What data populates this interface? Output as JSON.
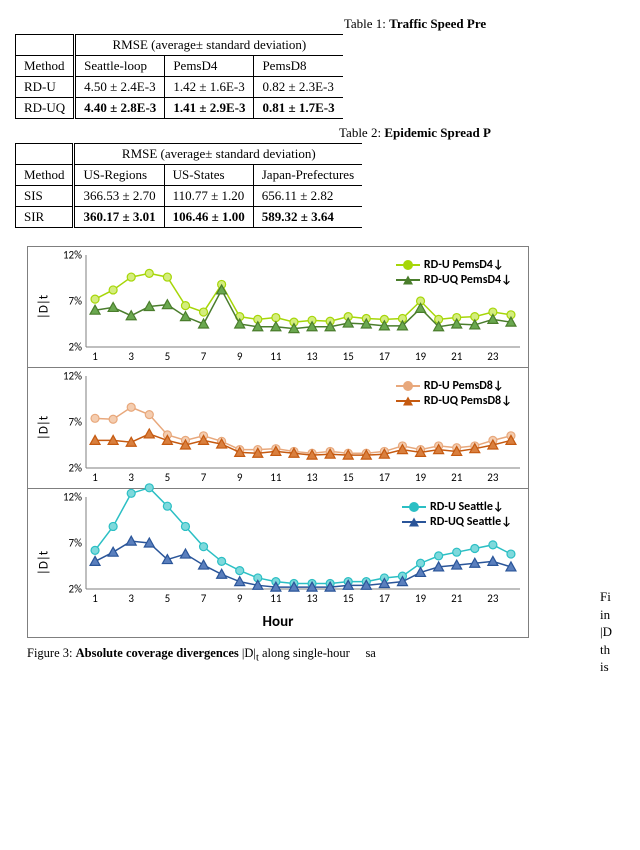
{
  "table1": {
    "caption_prefix": "Table 1: ",
    "caption_bold": "Traffic Speed Pre",
    "header_metric": "RMSE (average± standard deviation)",
    "method_header": "Method",
    "columns": [
      "Seattle-loop",
      "PemsD4",
      "PemsD8"
    ],
    "rows": [
      {
        "method": "RD-U",
        "vals": [
          "4.50 ± 2.4E-3",
          "1.42 ± 1.6E-3",
          "0.82 ± 2.3E-3"
        ],
        "bold": false
      },
      {
        "method": "RD-UQ",
        "vals": [
          "4.40 ± 2.8E-3",
          "1.41 ± 2.9E-3",
          "0.81 ± 1.7E-3"
        ],
        "bold": true
      }
    ]
  },
  "table2": {
    "caption_prefix": "Table 2: ",
    "caption_bold": "Epidemic Spread P",
    "header_metric": "RMSE (average± standard deviation)",
    "method_header": "Method",
    "columns": [
      "US-Regions",
      "US-States",
      "Japan-Prefectures"
    ],
    "rows": [
      {
        "method": "SIS",
        "vals": [
          "366.53 ± 2.70",
          "110.77 ± 1.20",
          "656.11 ± 2.82"
        ],
        "bold": false
      },
      {
        "method": "SIR",
        "vals": [
          "360.17 ± 3.01",
          "106.46 ± 1.00",
          "589.32 ± 3.64"
        ],
        "bold": true
      }
    ]
  },
  "charts": {
    "x_categories": [
      1,
      2,
      3,
      4,
      5,
      6,
      7,
      8,
      9,
      10,
      11,
      12,
      13,
      14,
      15,
      16,
      17,
      18,
      19,
      20,
      21,
      22,
      23,
      24
    ],
    "x_ticks_shown": [
      1,
      3,
      5,
      7,
      9,
      11,
      13,
      15,
      17,
      19,
      21,
      23
    ],
    "ytick_labels": [
      "2%",
      "7%",
      "12%"
    ],
    "ytick_values": [
      2,
      7,
      12
    ],
    "ylimits": [
      2,
      12
    ],
    "xaxis_title": "Hour",
    "ylabel": "|D|t",
    "panels": [
      {
        "legend": [
          {
            "label": "RD-U PemsD4↓",
            "color": "#a6d608",
            "marker": "circle"
          },
          {
            "label": "RD-UQ PemsD4↓",
            "color": "#4a7d2c",
            "marker": "triangle"
          }
        ],
        "series": [
          {
            "color": "#a6d608",
            "marker": "circle",
            "fill": "#d4ed7e",
            "y": [
              7.2,
              8.2,
              9.6,
              10.0,
              9.6,
              6.5,
              5.8,
              8.8,
              5.3,
              5.0,
              5.2,
              4.7,
              4.9,
              4.8,
              5.3,
              5.1,
              5.0,
              5.1,
              7.0,
              5.0,
              5.2,
              5.3,
              5.8,
              5.5
            ]
          },
          {
            "color": "#4a7d2c",
            "marker": "triangle",
            "fill": "#6aa84f",
            "y": [
              6.0,
              6.3,
              5.4,
              6.4,
              6.6,
              5.3,
              4.5,
              8.2,
              4.5,
              4.2,
              4.2,
              4.0,
              4.2,
              4.2,
              4.6,
              4.5,
              4.3,
              4.3,
              6.2,
              4.2,
              4.5,
              4.4,
              5.0,
              4.7
            ]
          }
        ]
      },
      {
        "legend": [
          {
            "label": "RD-U PemsD8↓",
            "color": "#e8a87c",
            "marker": "circle"
          },
          {
            "label": "RD-UQ PemsD8↓",
            "color": "#c55a11",
            "marker": "triangle"
          }
        ],
        "series": [
          {
            "color": "#e8a87c",
            "marker": "circle",
            "fill": "#f4cdb0",
            "y": [
              7.4,
              7.3,
              8.6,
              7.8,
              5.6,
              5.0,
              5.5,
              4.9,
              4.0,
              4.0,
              4.1,
              3.8,
              3.6,
              3.8,
              3.6,
              3.6,
              3.8,
              4.4,
              4.0,
              4.4,
              4.2,
              4.4,
              5.0,
              5.5
            ]
          },
          {
            "color": "#c55a11",
            "marker": "triangle",
            "fill": "#d97f3e",
            "y": [
              5.0,
              5.0,
              4.8,
              5.7,
              5.0,
              4.5,
              5.0,
              4.6,
              3.7,
              3.6,
              3.8,
              3.6,
              3.4,
              3.5,
              3.4,
              3.4,
              3.5,
              4.0,
              3.7,
              4.0,
              3.8,
              4.1,
              4.5,
              5.0
            ]
          }
        ]
      },
      {
        "legend": [
          {
            "label": "RD-U Seattle↓",
            "color": "#2bbfc4",
            "marker": "circle"
          },
          {
            "label": "RD-UQ Seattle↓",
            "color": "#2a5599",
            "marker": "triangle"
          }
        ],
        "series": [
          {
            "color": "#2bbfc4",
            "marker": "circle",
            "fill": "#7ed9dc",
            "y": [
              6.2,
              8.8,
              12.4,
              13.0,
              11.0,
              8.8,
              6.6,
              5.0,
              4.0,
              3.2,
              2.8,
              2.6,
              2.6,
              2.6,
              2.8,
              2.8,
              3.2,
              3.4,
              4.8,
              5.6,
              6.0,
              6.4,
              6.8,
              5.8
            ]
          },
          {
            "color": "#2a5599",
            "marker": "triangle",
            "fill": "#5a7fbd",
            "y": [
              5.0,
              6.0,
              7.2,
              7.0,
              5.2,
              5.8,
              4.6,
              3.6,
              2.8,
              2.4,
              2.2,
              2.2,
              2.2,
              2.2,
              2.4,
              2.4,
              2.6,
              2.8,
              3.8,
              4.4,
              4.6,
              4.8,
              5.0,
              4.4
            ]
          }
        ],
        "last": true
      }
    ]
  },
  "figure_caption": {
    "prefix": "Figure 3: ",
    "bold": "Absolute coverage divergences ",
    "math": "|D|",
    "sub": "t",
    "suffix": " along single-hour"
  },
  "side": {
    "lines": [
      "Fi",
      "in",
      "|D",
      "th",
      "is"
    ]
  },
  "fragment_sa": "sa"
}
